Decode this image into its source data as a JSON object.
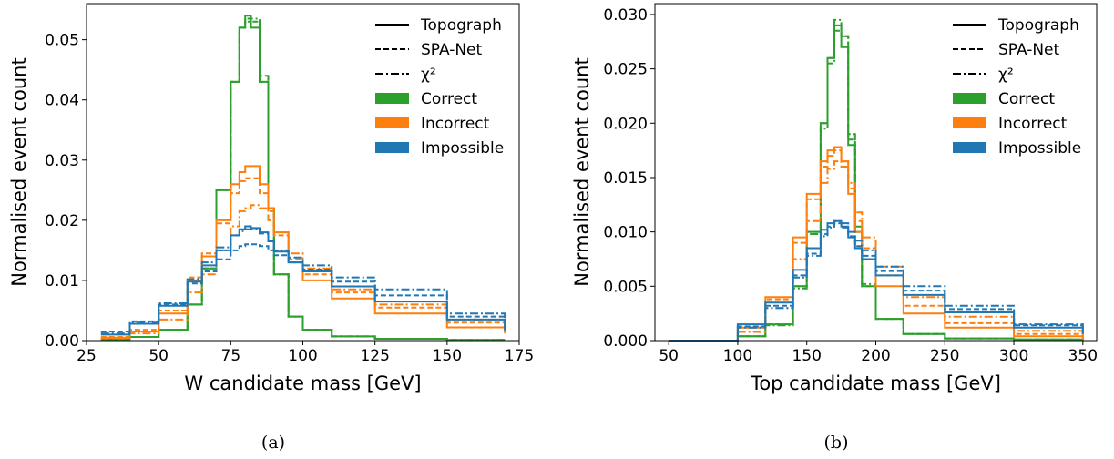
{
  "chart_data": [
    {
      "type": "line",
      "caption": "(a)",
      "xlabel": "W candidate mass [GeV]",
      "ylabel": "Normalised event count",
      "xlim": [
        25,
        175
      ],
      "ylim": [
        0,
        0.056
      ],
      "xticks": [
        25,
        50,
        75,
        100,
        125,
        150,
        175
      ],
      "xtick_labels": [
        "25",
        "50",
        "75",
        "100",
        "125",
        "150",
        "175"
      ],
      "yticks": [
        0,
        0.01,
        0.02,
        0.03,
        0.04,
        0.05
      ],
      "ytick_labels": [
        "0.00",
        "0.01",
        "0.02",
        "0.03",
        "0.04",
        "0.05"
      ],
      "legend_placement": "top-right",
      "legend": [
        {
          "label": "Topograph",
          "kind": "line",
          "dash": "solid"
        },
        {
          "label": "SPA-Net",
          "kind": "line",
          "dash": "dashed"
        },
        {
          "label": "χ²",
          "kind": "line",
          "dash": "dashdot"
        },
        {
          "label": "Correct",
          "kind": "patch",
          "color": "#2ca02c"
        },
        {
          "label": "Incorrect",
          "kind": "patch",
          "color": "#ff7f0e"
        },
        {
          "label": "Impossible",
          "kind": "patch",
          "color": "#1f77b4"
        }
      ],
      "x": [
        30,
        40,
        50,
        60,
        65,
        70,
        75,
        78,
        80,
        82,
        85,
        88,
        90,
        95,
        100,
        110,
        125,
        150,
        170
      ],
      "series": [
        {
          "category": "Correct",
          "method": "Topograph",
          "color": "#2ca02c",
          "dash": "solid",
          "values": [
            0.0002,
            0.0006,
            0.0018,
            0.006,
            0.012,
            0.025,
            0.043,
            0.052,
            0.054,
            0.052,
            0.043,
            0.022,
            0.011,
            0.004,
            0.0018,
            0.0007,
            0.0003,
            0.0001,
            0.0001
          ]
        },
        {
          "category": "Correct",
          "method": "SPA-Net",
          "color": "#2ca02c",
          "dash": "dashed",
          "values": [
            0.0002,
            0.0006,
            0.0018,
            0.006,
            0.012,
            0.025,
            0.043,
            0.052,
            0.0535,
            0.053,
            0.043,
            0.022,
            0.011,
            0.004,
            0.0018,
            0.0007,
            0.0003,
            0.0001,
            0.0001
          ]
        },
        {
          "category": "Correct",
          "method": "χ²",
          "color": "#2ca02c",
          "dash": "dashdot",
          "values": [
            0.0002,
            0.0006,
            0.0018,
            0.006,
            0.012,
            0.025,
            0.043,
            0.052,
            0.053,
            0.0535,
            0.044,
            0.022,
            0.011,
            0.004,
            0.0018,
            0.0007,
            0.0003,
            0.0001,
            0.0001
          ]
        },
        {
          "category": "Incorrect",
          "method": "Topograph",
          "color": "#ff7f0e",
          "dash": "solid",
          "values": [
            0.0005,
            0.0015,
            0.0045,
            0.01,
            0.014,
            0.02,
            0.026,
            0.028,
            0.029,
            0.029,
            0.026,
            0.022,
            0.018,
            0.013,
            0.01,
            0.007,
            0.0045,
            0.0022,
            0.0012
          ]
        },
        {
          "category": "Incorrect",
          "method": "SPA-Net",
          "color": "#ff7f0e",
          "dash": "dashed",
          "values": [
            0.0006,
            0.0018,
            0.005,
            0.0105,
            0.0145,
            0.0195,
            0.0245,
            0.0265,
            0.027,
            0.027,
            0.0245,
            0.0215,
            0.0175,
            0.0135,
            0.011,
            0.008,
            0.0055,
            0.003,
            0.0015
          ]
        },
        {
          "category": "Incorrect",
          "method": "χ²",
          "color": "#ff7f0e",
          "dash": "dashdot",
          "values": [
            0.0004,
            0.0012,
            0.0035,
            0.008,
            0.011,
            0.015,
            0.019,
            0.0215,
            0.022,
            0.0225,
            0.022,
            0.02,
            0.018,
            0.0145,
            0.012,
            0.0085,
            0.006,
            0.0035,
            0.0018
          ]
        },
        {
          "category": "Impossible",
          "method": "Topograph",
          "color": "#1f77b4",
          "dash": "solid",
          "values": [
            0.001,
            0.0028,
            0.0058,
            0.0098,
            0.0125,
            0.015,
            0.0175,
            0.0185,
            0.019,
            0.0187,
            0.018,
            0.0165,
            0.0148,
            0.013,
            0.0115,
            0.009,
            0.0065,
            0.0035,
            0.0017
          ]
        },
        {
          "category": "Impossible",
          "method": "SPA-Net",
          "color": "#1f77b4",
          "dash": "dashed",
          "values": [
            0.0015,
            0.0032,
            0.006,
            0.0095,
            0.0115,
            0.0135,
            0.015,
            0.0157,
            0.016,
            0.016,
            0.0157,
            0.015,
            0.0142,
            0.013,
            0.0118,
            0.0098,
            0.0075,
            0.004,
            0.0018
          ]
        },
        {
          "category": "Impossible",
          "method": "χ²",
          "color": "#1f77b4",
          "dash": "dashdot",
          "values": [
            0.0012,
            0.003,
            0.0062,
            0.0102,
            0.013,
            0.0155,
            0.0175,
            0.0182,
            0.0185,
            0.0185,
            0.0178,
            0.0165,
            0.015,
            0.0138,
            0.0125,
            0.0105,
            0.0085,
            0.0045,
            0.002
          ]
        }
      ]
    },
    {
      "type": "line",
      "caption": "(b)",
      "xlabel": "Top candidate mass [GeV]",
      "ylabel": "Normalised event count",
      "xlim": [
        40,
        360
      ],
      "ylim": [
        0,
        0.031
      ],
      "xticks": [
        50,
        100,
        150,
        200,
        250,
        300,
        350
      ],
      "xtick_labels": [
        "50",
        "100",
        "150",
        "200",
        "250",
        "300",
        "350"
      ],
      "yticks": [
        0,
        0.005,
        0.01,
        0.015,
        0.02,
        0.025,
        0.03
      ],
      "ytick_labels": [
        "0.000",
        "0.005",
        "0.010",
        "0.015",
        "0.020",
        "0.025",
        "0.030"
      ],
      "legend_placement": "top-right",
      "legend": [
        {
          "label": "Topograph",
          "kind": "line",
          "dash": "solid"
        },
        {
          "label": "SPA-Net",
          "kind": "line",
          "dash": "dashed"
        },
        {
          "label": "χ²",
          "kind": "line",
          "dash": "dashdot"
        },
        {
          "label": "Correct",
          "kind": "patch",
          "color": "#2ca02c"
        },
        {
          "label": "Incorrect",
          "kind": "patch",
          "color": "#ff7f0e"
        },
        {
          "label": "Impossible",
          "kind": "patch",
          "color": "#1f77b4"
        }
      ],
      "x": [
        50,
        100,
        120,
        140,
        150,
        160,
        165,
        170,
        175,
        180,
        185,
        190,
        200,
        220,
        250,
        300,
        350
      ],
      "series": [
        {
          "category": "Correct",
          "method": "Topograph",
          "color": "#2ca02c",
          "dash": "solid",
          "values": [
            0,
            0.0004,
            0.0015,
            0.005,
            0.01,
            0.02,
            0.026,
            0.029,
            0.027,
            0.018,
            0.01,
            0.005,
            0.002,
            0.0006,
            0.0002,
            0.0001,
            0
          ]
        },
        {
          "category": "Correct",
          "method": "SPA-Net",
          "color": "#2ca02c",
          "dash": "dashed",
          "values": [
            0,
            0.0004,
            0.0015,
            0.005,
            0.01,
            0.02,
            0.026,
            0.0285,
            0.028,
            0.0185,
            0.01,
            0.005,
            0.002,
            0.0006,
            0.0002,
            0.0001,
            0
          ]
        },
        {
          "category": "Correct",
          "method": "χ²",
          "color": "#2ca02c",
          "dash": "dashdot",
          "values": [
            0,
            0.0004,
            0.0014,
            0.0048,
            0.0098,
            0.0195,
            0.0255,
            0.0295,
            0.028,
            0.019,
            0.0105,
            0.0052,
            0.002,
            0.0006,
            0.0002,
            0.0001,
            0
          ]
        },
        {
          "category": "Incorrect",
          "method": "Topograph",
          "color": "#ff7f0e",
          "dash": "solid",
          "values": [
            0,
            0.0012,
            0.004,
            0.0095,
            0.0135,
            0.0165,
            0.0175,
            0.0178,
            0.0165,
            0.0135,
            0.01,
            0.0075,
            0.005,
            0.0025,
            0.0012,
            0.0004,
            0.0001
          ]
        },
        {
          "category": "Incorrect",
          "method": "SPA-Net",
          "color": "#ff7f0e",
          "dash": "dashed",
          "values": [
            0,
            0.0012,
            0.0038,
            0.009,
            0.013,
            0.016,
            0.017,
            0.0175,
            0.0165,
            0.014,
            0.011,
            0.0085,
            0.006,
            0.0032,
            0.0016,
            0.0006,
            0.0002
          ]
        },
        {
          "category": "Incorrect",
          "method": "χ²",
          "color": "#ff7f0e",
          "dash": "dashdot",
          "values": [
            0,
            0.0008,
            0.003,
            0.0075,
            0.011,
            0.0145,
            0.0158,
            0.0165,
            0.016,
            0.0145,
            0.0118,
            0.0095,
            0.0068,
            0.004,
            0.0022,
            0.0009,
            0.0003
          ]
        },
        {
          "category": "Impossible",
          "method": "Topograph",
          "color": "#1f77b4",
          "dash": "solid",
          "values": [
            0,
            0.0015,
            0.0035,
            0.0065,
            0.0085,
            0.0102,
            0.0108,
            0.011,
            0.0105,
            0.0095,
            0.0085,
            0.0075,
            0.006,
            0.0042,
            0.0026,
            0.0012,
            0.0006
          ]
        },
        {
          "category": "Impossible",
          "method": "SPA-Net",
          "color": "#1f77b4",
          "dash": "dashed",
          "values": [
            0,
            0.0013,
            0.0032,
            0.006,
            0.008,
            0.0098,
            0.0105,
            0.0108,
            0.0104,
            0.0096,
            0.0087,
            0.0078,
            0.0064,
            0.0046,
            0.0029,
            0.0014,
            0.0007
          ]
        },
        {
          "category": "Impossible",
          "method": "χ²",
          "color": "#1f77b4",
          "dash": "dashdot",
          "values": [
            0,
            0.0012,
            0.003,
            0.0058,
            0.0078,
            0.0096,
            0.0104,
            0.011,
            0.0108,
            0.01,
            0.0092,
            0.0083,
            0.0068,
            0.005,
            0.0032,
            0.0015,
            0.0008
          ]
        }
      ]
    }
  ]
}
